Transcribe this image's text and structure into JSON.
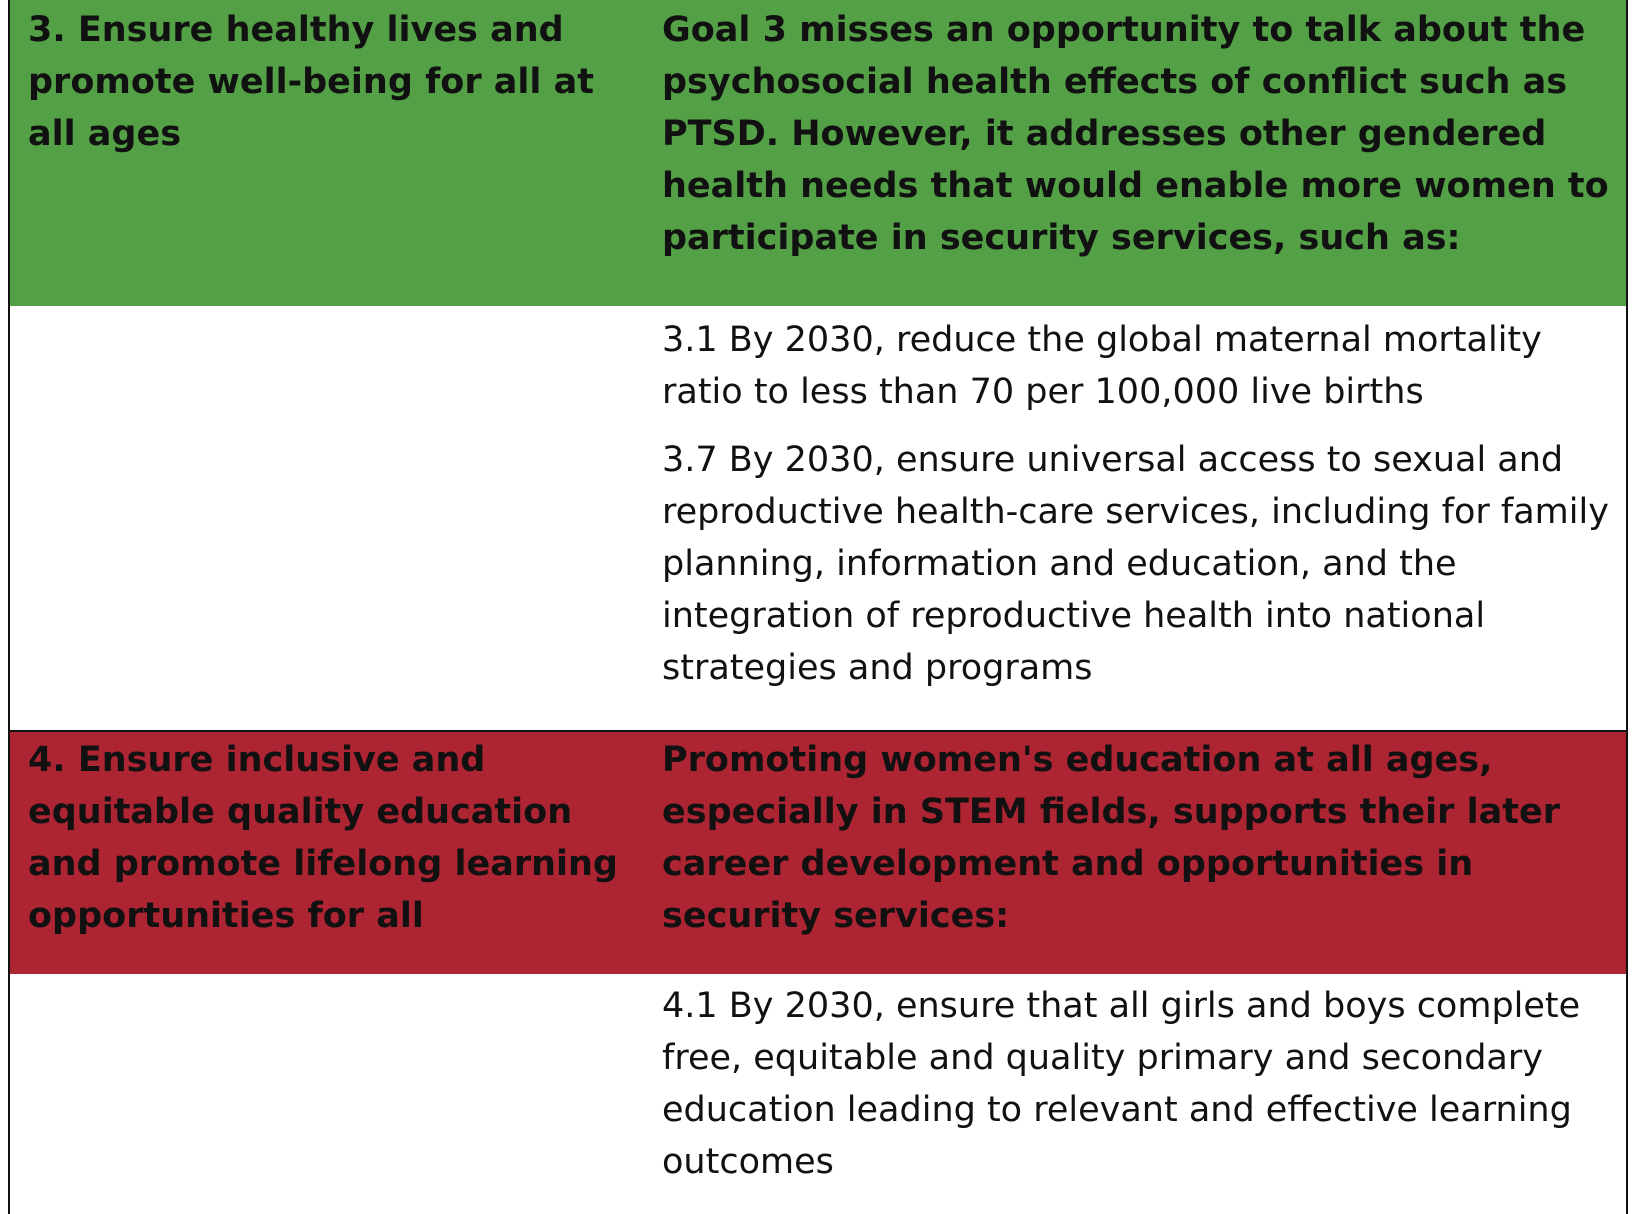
{
  "goals": [
    {
      "title": "3. Ensure healthy lives and promote well-being for all at all ages",
      "summary": "Goal 3 misses an opportunity to talk about the psychosocial health effects of conflict such as PTSD. However, it addresses other gendered health needs that would enable more women to participate in security services, such as:",
      "color": "#54a046",
      "targets": [
        "3.1 By 2030, reduce the global maternal mortality ratio to less than 70 per 100,000 live births",
        "3.7 By 2030, ensure universal access to sexual and reproductive health-care services, including for family planning, information and education, and the integration of reproductive health into national strategies and programs"
      ]
    },
    {
      "title": "4. Ensure inclusive and equitable quality education and promote lifelong learning opportunities for all",
      "summary": "Promoting women's education at all ages, especially in STEM fields, supports their later career development and opportunities in security services:",
      "color": "#ad2433",
      "targets": [
        "4.1 By 2030, ensure that all girls and boys complete free, equitable and quality primary and secondary education leading to relevant and effective learning outcomes"
      ]
    }
  ]
}
